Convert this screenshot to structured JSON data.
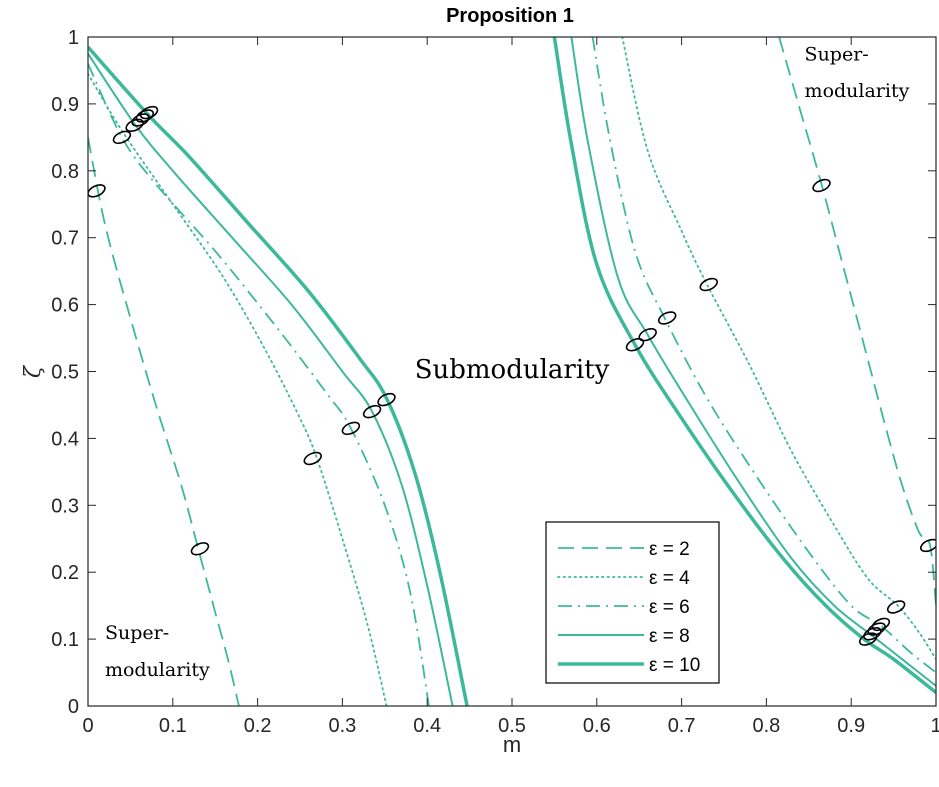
{
  "chart_data": {
    "type": "line",
    "title": "Proposition 1",
    "xlabel": "m",
    "ylabel": "ζ",
    "xlim": [
      0,
      1
    ],
    "ylim": [
      0,
      1
    ],
    "x_ticks": [
      "0",
      "0.1",
      "0.2",
      "0.3",
      "0.4",
      "0.5",
      "0.6",
      "0.7",
      "0.8",
      "0.9",
      "1"
    ],
    "y_ticks": [
      "0",
      "0.1",
      "0.2",
      "0.3",
      "0.4",
      "0.5",
      "0.6",
      "0.7",
      "0.8",
      "0.9",
      "1"
    ],
    "grid": false,
    "legend_position": "bottom-right",
    "line_color": "#3cb99b",
    "series": [
      {
        "name": "ε = 2",
        "dash": "dashed",
        "left_curve": [
          [
            0.0,
            0.85
          ],
          [
            0.02,
            0.72
          ],
          [
            0.05,
            0.58
          ],
          [
            0.08,
            0.45
          ],
          [
            0.11,
            0.33
          ],
          [
            0.13,
            0.235
          ],
          [
            0.15,
            0.14
          ],
          [
            0.165,
            0.07
          ],
          [
            0.178,
            0.0
          ]
        ],
        "right_curve": [
          [
            0.815,
            1.0
          ],
          [
            0.84,
            0.89
          ],
          [
            0.865,
            0.78
          ],
          [
            0.89,
            0.66
          ],
          [
            0.915,
            0.54
          ],
          [
            0.94,
            0.42
          ],
          [
            0.96,
            0.33
          ],
          [
            0.98,
            0.26
          ],
          [
            0.993,
            0.24
          ],
          [
            1.0,
            0.15
          ]
        ]
      },
      {
        "name": "ε = 4",
        "dash": "dotted",
        "left_curve": [
          [
            0.0,
            0.945
          ],
          [
            0.04,
            0.86
          ],
          [
            0.1,
            0.75
          ],
          [
            0.16,
            0.64
          ],
          [
            0.21,
            0.53
          ],
          [
            0.25,
            0.43
          ],
          [
            0.27,
            0.37
          ],
          [
            0.3,
            0.25
          ],
          [
            0.33,
            0.12
          ],
          [
            0.352,
            0.0
          ]
        ],
        "right_curve": [
          [
            0.63,
            1.0
          ],
          [
            0.66,
            0.83
          ],
          [
            0.7,
            0.71
          ],
          [
            0.73,
            0.63
          ],
          [
            0.78,
            0.51
          ],
          [
            0.83,
            0.38
          ],
          [
            0.88,
            0.27
          ],
          [
            0.92,
            0.19
          ],
          [
            0.955,
            0.15
          ],
          [
            0.98,
            0.11
          ],
          [
            1.0,
            0.07
          ]
        ]
      },
      {
        "name": "ε = 6",
        "dash": "dashdot",
        "left_curve": [
          [
            0.0,
            0.96
          ],
          [
            0.04,
            0.85
          ],
          [
            0.08,
            0.78
          ],
          [
            0.15,
            0.68
          ],
          [
            0.22,
            0.57
          ],
          [
            0.28,
            0.47
          ],
          [
            0.31,
            0.415
          ],
          [
            0.35,
            0.3
          ],
          [
            0.38,
            0.17
          ],
          [
            0.402,
            0.0
          ]
        ],
        "right_curve": [
          [
            0.595,
            1.0
          ],
          [
            0.615,
            0.85
          ],
          [
            0.645,
            0.68
          ],
          [
            0.68,
            0.58
          ],
          [
            0.73,
            0.46
          ],
          [
            0.79,
            0.34
          ],
          [
            0.85,
            0.23
          ],
          [
            0.9,
            0.15
          ],
          [
            0.935,
            0.12
          ],
          [
            0.97,
            0.08
          ],
          [
            1.0,
            0.05
          ]
        ]
      },
      {
        "name": "ε = 8",
        "dash": "solid",
        "width": 2,
        "left_curve": [
          [
            0.0,
            0.975
          ],
          [
            0.055,
            0.87
          ],
          [
            0.1,
            0.8
          ],
          [
            0.17,
            0.7
          ],
          [
            0.24,
            0.6
          ],
          [
            0.3,
            0.5
          ],
          [
            0.335,
            0.44
          ],
          [
            0.37,
            0.33
          ],
          [
            0.4,
            0.18
          ],
          [
            0.43,
            0.0
          ]
        ],
        "right_curve": [
          [
            0.57,
            1.0
          ],
          [
            0.59,
            0.84
          ],
          [
            0.625,
            0.64
          ],
          [
            0.66,
            0.555
          ],
          [
            0.71,
            0.45
          ],
          [
            0.77,
            0.33
          ],
          [
            0.83,
            0.22
          ],
          [
            0.88,
            0.15
          ],
          [
            0.925,
            0.105
          ],
          [
            0.96,
            0.07
          ],
          [
            1.0,
            0.03
          ]
        ]
      },
      {
        "name": "ε = 10",
        "dash": "solid",
        "width": 3.5,
        "left_curve": [
          [
            0.0,
            0.985
          ],
          [
            0.07,
            0.885
          ],
          [
            0.12,
            0.82
          ],
          [
            0.19,
            0.72
          ],
          [
            0.26,
            0.62
          ],
          [
            0.32,
            0.52
          ],
          [
            0.352,
            0.46
          ],
          [
            0.385,
            0.35
          ],
          [
            0.415,
            0.2
          ],
          [
            0.447,
            0.0
          ]
        ],
        "right_curve": [
          [
            0.55,
            1.0
          ],
          [
            0.57,
            0.84
          ],
          [
            0.6,
            0.66
          ],
          [
            0.645,
            0.54
          ],
          [
            0.7,
            0.43
          ],
          [
            0.76,
            0.32
          ],
          [
            0.82,
            0.22
          ],
          [
            0.87,
            0.15
          ],
          [
            0.915,
            0.1
          ],
          [
            0.95,
            0.07
          ],
          [
            1.0,
            0.02
          ]
        ]
      }
    ],
    "markers": [
      [
        0.01,
        0.77
      ],
      [
        0.04,
        0.85
      ],
      [
        0.055,
        0.868
      ],
      [
        0.062,
        0.876
      ],
      [
        0.067,
        0.882
      ],
      [
        0.072,
        0.887
      ],
      [
        0.132,
        0.235
      ],
      [
        0.265,
        0.37
      ],
      [
        0.31,
        0.415
      ],
      [
        0.335,
        0.44
      ],
      [
        0.352,
        0.458
      ],
      [
        0.645,
        0.54
      ],
      [
        0.66,
        0.555
      ],
      [
        0.683,
        0.58
      ],
      [
        0.732,
        0.63
      ],
      [
        0.865,
        0.778
      ],
      [
        0.92,
        0.1
      ],
      [
        0.925,
        0.108
      ],
      [
        0.93,
        0.115
      ],
      [
        0.935,
        0.122
      ],
      [
        0.953,
        0.148
      ],
      [
        0.992,
        0.24
      ]
    ],
    "annotations": [
      {
        "text": "Submodularity",
        "x": 0.5,
        "y": 0.49
      },
      {
        "text": "Super-",
        "x": 0.02,
        "y": 0.1
      },
      {
        "text": "modularity",
        "x": 0.02,
        "y": 0.045
      },
      {
        "text": "Super-",
        "x": 0.845,
        "y": 0.965
      },
      {
        "text": "modularity",
        "x": 0.845,
        "y": 0.91
      }
    ]
  }
}
